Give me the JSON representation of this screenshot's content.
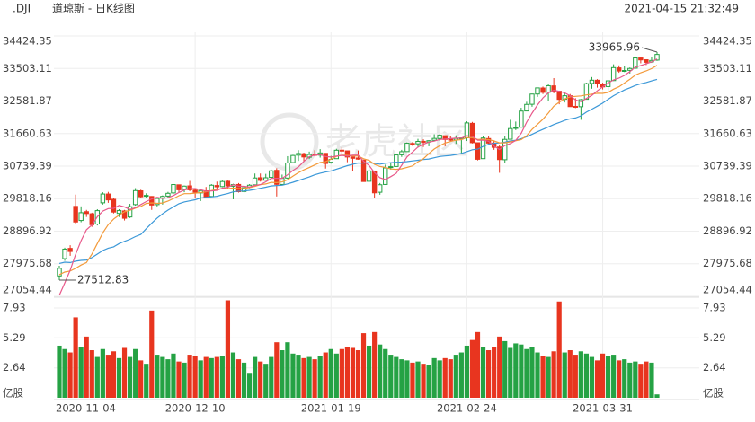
{
  "header": {
    "symbol": ".DJI",
    "name": "道琼斯 - 日K线图",
    "datetime": "2021-04-15 21:32:49"
  },
  "watermark": "老虎社区",
  "chart_data": {
    "type": "candlestick",
    "categories": [
      "2020-11-04",
      null,
      null,
      null,
      null,
      null,
      null,
      null,
      null,
      null,
      null,
      null,
      null,
      null,
      null,
      null,
      null,
      null,
      null,
      null,
      null,
      null,
      null,
      null,
      null,
      "2020-12-10",
      null,
      null,
      null,
      null,
      null,
      null,
      null,
      null,
      null,
      null,
      null,
      null,
      null,
      null,
      null,
      null,
      null,
      null,
      null,
      null,
      null,
      null,
      null,
      null,
      "2021-01-19",
      null,
      null,
      null,
      null,
      null,
      null,
      null,
      null,
      null,
      null,
      null,
      null,
      null,
      null,
      null,
      null,
      null,
      null,
      null,
      null,
      null,
      null,
      null,
      null,
      "2021-02-24",
      null,
      null,
      null,
      null,
      null,
      null,
      null,
      null,
      null,
      null,
      null,
      null,
      null,
      null,
      null,
      null,
      null,
      null,
      null,
      null,
      null,
      null,
      null,
      null,
      "2021-03-31",
      null,
      null,
      null,
      null,
      null,
      null,
      null,
      null,
      null,
      null
    ],
    "open": [
      27631,
      28120,
      28410,
      29600,
      29200,
      29450,
      29390,
      29100,
      29700,
      29950,
      29800,
      29400,
      29470,
      29300,
      29650,
      30040,
      29900,
      29880,
      29650,
      29830,
      29890,
      29980,
      30210,
      30080,
      30180,
      30060,
      29980,
      30040,
      29880,
      30190,
      30160,
      30310,
      30170,
      30220,
      30020,
      30140,
      30210,
      30410,
      30340,
      30420,
      30620,
      30220,
      30400,
      30840,
      31050,
      31090,
      30990,
      31070,
      31050,
      31100,
      30850,
      30950,
      31190,
      31170,
      31000,
      30970,
      30910,
      30310,
      30600,
      30000,
      30220,
      30700,
      30730,
      31060,
      31150,
      31380,
      31370,
      31440,
      31420,
      31470,
      31520,
      31600,
      31500,
      31480,
      31510,
      31540,
      31950,
      31400,
      30950,
      31520,
      31390,
      31280,
      30920,
      31500,
      31810,
      31840,
      32300,
      32490,
      32780,
      32950,
      32830,
      33010,
      32860,
      32630,
      32730,
      32430,
      32420,
      32630,
      33080,
      33170,
      33060,
      32990,
      33160,
      33520,
      33440,
      33450,
      33510,
      33800,
      33750,
      33690,
      33740
    ],
    "high": [
      27920,
      28430,
      28500,
      29933,
      29600,
      29500,
      29420,
      29520,
      30000,
      30010,
      29850,
      29520,
      29500,
      29670,
      30116,
      30070,
      29970,
      29890,
      29860,
      29910,
      30010,
      30230,
      30220,
      30190,
      30320,
      30090,
      30100,
      30150,
      30230,
      30300,
      30330,
      30330,
      30240,
      30260,
      30190,
      30230,
      30530,
      30530,
      30520,
      30640,
      30680,
      30500,
      31020,
      31060,
      31190,
      31120,
      31150,
      31190,
      31220,
      31110,
      31030,
      31230,
      31270,
      31170,
      31010,
      31180,
      30910,
      30740,
      30600,
      30260,
      30780,
      30850,
      31060,
      31200,
      31410,
      31420,
      31510,
      31500,
      31470,
      31640,
      31640,
      31600,
      31590,
      31610,
      31550,
      32010,
      31990,
      31400,
      31580,
      31600,
      31470,
      31350,
      31600,
      32050,
      32000,
      32390,
      32560,
      32790,
      32960,
      32990,
      33050,
      33230,
      32860,
      32810,
      32780,
      32660,
      32640,
      33100,
      33260,
      33200,
      33100,
      33170,
      33620,
      33590,
      33570,
      33530,
      33810,
      33810,
      33760,
      33830,
      33965.96
    ],
    "low": [
      27512.83,
      28060,
      28200,
      29100,
      29150,
      29300,
      29020,
      29060,
      29650,
      29700,
      29400,
      29300,
      29200,
      29270,
      29620,
      29830,
      29840,
      29500,
      29600,
      29650,
      29850,
      29960,
      30000,
      30000,
      30030,
      29830,
      29750,
      29840,
      29870,
      30080,
      30140,
      30100,
      29800,
      29990,
      29980,
      30110,
      30200,
      30300,
      30330,
      30400,
      29880,
      30200,
      30380,
      30830,
      30890,
      30860,
      30940,
      31020,
      30980,
      30670,
      30810,
      30950,
      31060,
      30850,
      30600,
      30920,
      30300,
      30300,
      29850,
      29930,
      30210,
      30640,
      30720,
      31000,
      31150,
      31310,
      31260,
      31280,
      31300,
      31450,
      31460,
      31300,
      31440,
      31370,
      31100,
      31450,
      31380,
      30900,
      30950,
      31370,
      31200,
      30550,
      30830,
      31500,
      31760,
      31840,
      32290,
      32420,
      32700,
      32780,
      32570,
      32800,
      32490,
      32540,
      32420,
      32380,
      32050,
      32620,
      32930,
      32960,
      32910,
      32880,
      33150,
      33380,
      33400,
      33360,
      33500,
      33650,
      33600,
      33660,
      33720
    ],
    "close": [
      27847,
      28390,
      28323,
      29157,
      29420,
      29397,
      29080,
      29479,
      29950,
      29783,
      29438,
      29483,
      29263,
      29591,
      30046,
      29872,
      29910,
      29638,
      29823,
      29883,
      29969,
      30218,
      30069,
      30173,
      30068,
      29999,
      30046,
      29861,
      30199,
      30154,
      30303,
      30179,
      30216,
      30015,
      30129,
      30199,
      30403,
      30335,
      30409,
      30606,
      30223,
      30391,
      30829,
      31041,
      31097,
      30998,
      31068,
      31060,
      31112,
      30814,
      30930,
      31188,
      31176,
      30997,
      30960,
      30937,
      30303,
      30603,
      29983,
      30212,
      30688,
      30724,
      31056,
      31148,
      31386,
      31376,
      31438,
      31431,
      31458,
      31523,
      31613,
      31494,
      31494,
      31522,
      31537,
      31962,
      31402,
      30932,
      31535,
      31391,
      31270,
      30924,
      31496,
      31802,
      31832,
      32297,
      32486,
      32779,
      32953,
      32826,
      33015,
      32862,
      32628,
      32732,
      32423,
      32420,
      32619,
      33073,
      33171,
      33066,
      32981,
      33153,
      33527,
      33430,
      33446,
      33503,
      33801,
      33745,
      33677,
      33730,
      33900
    ],
    "up_color": "#25a244",
    "down_color": "#e8351f",
    "ma_lines": [
      {
        "color": "#3b98d8",
        "values": [
          27984,
          28020,
          28011,
          28048,
          28070,
          28080,
          28151,
          28250,
          28351,
          28417,
          28455,
          28546,
          28609,
          28667,
          28745,
          28805,
          28967,
          29124,
          29269,
          29389,
          29495,
          29586,
          29674,
          29725,
          29757,
          29787,
          29836,
          29854,
          29867,
          29886,
          29929,
          29963,
          30011,
          30032,
          30036,
          30053,
          30078,
          30112,
          30142,
          30178,
          30191,
          30199,
          30237,
          30281,
          30332,
          30382,
          30433,
          30493,
          30539,
          30571,
          30603,
          30654,
          30702,
          30751,
          30792,
          30829,
          30824,
          30838,
          30816,
          30796,
          30820,
          30837,
          30848,
          30853,
          30867,
          30887,
          30905,
          30924,
          30941,
          30976,
          31011,
          31026,
          31042,
          31068,
          31097,
          31148,
          31203,
          31220,
          31297,
          31356,
          31385,
          31395,
          31417,
          31450,
          31472,
          31518,
          31571,
          31638,
          31713,
          31778,
          31848,
          31916,
          31973,
          32034,
          32078,
          32101,
          32162,
          32268,
          32350,
          32434,
          32520,
          32631,
          32733,
          32814,
          32895,
          32955,
          33021,
          33069,
          33105,
          33150,
          33195
        ]
      },
      {
        "color": "#f39a3a",
        "values": [
          27667,
          27740,
          27772,
          27845,
          27939,
          28010,
          28252,
          28550,
          28852,
          29083,
          29242,
          29351,
          29445,
          29489,
          29551,
          29599,
          29682,
          29697,
          29685,
          29695,
          29748,
          29821,
          29902,
          29960,
          29962,
          29975,
          29989,
          30011,
          30049,
          30076,
          30109,
          30105,
          30120,
          30104,
          30110,
          30131,
          30166,
          30213,
          30234,
          30279,
          30272,
          30293,
          30354,
          30457,
          30553,
          30633,
          30700,
          30773,
          30843,
          30863,
          30934,
          31014,
          31049,
          31044,
          31030,
          31025,
          30948,
          30902,
          30789,
          30729,
          30705,
          30659,
          30647,
          30662,
          30704,
          30748,
          30862,
          30945,
          31092,
          31223,
          31316,
          31393,
          31436,
          31474,
          31489,
          31548,
          31544,
          31494,
          31502,
          31488,
          31454,
          31397,
          31397,
          31426,
          31455,
          31488,
          31597,
          31781,
          31923,
          32067,
          32241,
          32435,
          32548,
          32641,
          32700,
          32713,
          32726,
          32755,
          32777,
          32801,
          32798,
          32827,
          32917,
          32986,
          33089,
          33197,
          33315,
          33383,
          33433,
          33499,
          33592
        ]
      },
      {
        "color": "#e8588a",
        "values": [
          27083,
          27429,
          27793,
          28239,
          28627,
          28937,
          29075,
          29307,
          29465,
          29538,
          29546,
          29627,
          29583,
          29512,
          29564,
          29651,
          29736,
          29811,
          29858,
          29825,
          29845,
          29906,
          29992,
          30062,
          30099,
          30105,
          30071,
          30029,
          30035,
          30052,
          30113,
          30139,
          30210,
          30173,
          30168,
          30148,
          30192,
          30216,
          30295,
          30390,
          30395,
          30393,
          30492,
          30618,
          30716,
          30871,
          31007,
          31053,
          31067,
          31010,
          30997,
          31021,
          31044,
          31021,
          31050,
          31052,
          30875,
          30760,
          30557,
          30408,
          30358,
          30442,
          30533,
          30766,
          31000,
          31138,
          31281,
          31356,
          31418,
          31445,
          31493,
          31504,
          31516,
          31529,
          31532,
          31602,
          31583,
          31471,
          31474,
          31444,
          31306,
          31210,
          31323,
          31377,
          31465,
          31670,
          31983,
          32239,
          32469,
          32668,
          32812,
          32887,
          32857,
          32813,
          32732,
          32613,
          32564,
          32653,
          32741,
          32870,
          32982,
          33089,
          33180,
          33231,
          33307,
          33412,
          33541,
          33585,
          33634,
          33691,
          33771
        ]
      }
    ],
    "ylim": [
      27054.44,
      34424.35
    ],
    "yticks": [
      27054.44,
      27975.68,
      28896.92,
      29818.16,
      30739.39,
      31660.63,
      32581.87,
      33503.11,
      34424.35
    ],
    "grid": true,
    "volume": {
      "unit": "亿股",
      "ylim": [
        0,
        8.64
      ],
      "yticks": [
        2.64,
        5.29,
        7.93
      ],
      "values": [
        4.6,
        4.3,
        4.0,
        7.1,
        4.5,
        5.4,
        4.2,
        3.6,
        4.3,
        3.8,
        4.1,
        3.5,
        4.4,
        3.6,
        4.3,
        3.3,
        3.0,
        7.7,
        3.8,
        3.6,
        3.4,
        3.9,
        3.2,
        3.1,
        3.8,
        3.7,
        3.3,
        3.6,
        3.5,
        3.6,
        3.7,
        8.6,
        4.0,
        3.4,
        3.1,
        2.2,
        3.6,
        3.2,
        3.0,
        3.6,
        4.9,
        4.2,
        4.9,
        3.9,
        3.8,
        3.5,
        3.6,
        3.4,
        3.7,
        4.0,
        4.3,
        3.9,
        4.3,
        4.5,
        4.4,
        4.2,
        5.7,
        4.6,
        5.8,
        4.7,
        4.3,
        3.8,
        3.6,
        3.4,
        3.3,
        3.1,
        3.2,
        3.0,
        2.9,
        3.5,
        3.3,
        3.5,
        3.4,
        3.8,
        4.0,
        4.6,
        5.1,
        5.8,
        4.5,
        4.2,
        4.5,
        5.4,
        5.0,
        4.4,
        4.8,
        4.7,
        4.3,
        4.5,
        4.0,
        3.7,
        3.6,
        4.1,
        8.5,
        4.0,
        4.2,
        3.8,
        4.1,
        3.9,
        3.6,
        3.3,
        3.9,
        3.7,
        3.8,
        3.3,
        3.4,
        3.1,
        3.2,
        3.0,
        3.2,
        3.1,
        0.3
      ]
    }
  }
}
